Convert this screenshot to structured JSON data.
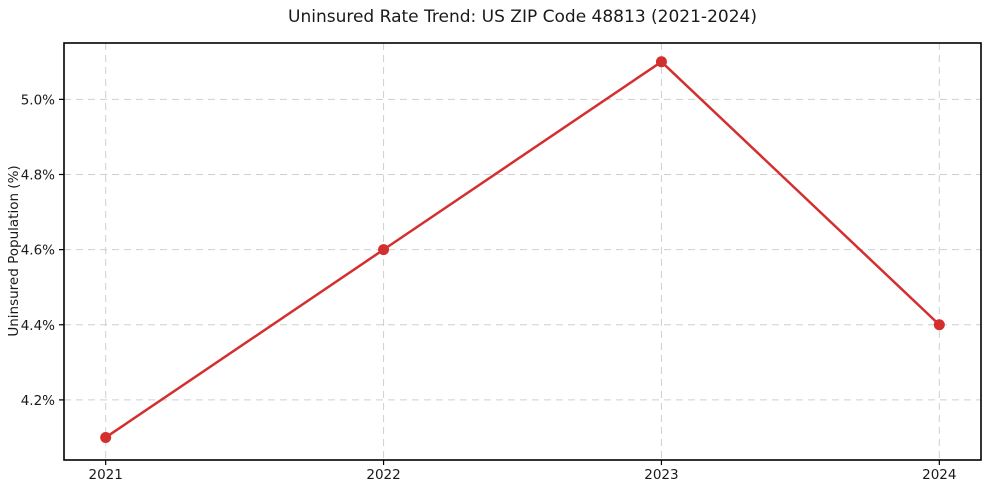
{
  "chart_data": {
    "type": "line",
    "title": "Uninsured Rate Trend: US ZIP Code 48813 (2021-2024)",
    "xlabel": "",
    "ylabel": "Uninsured Population (%)",
    "x": [
      2021,
      2022,
      2023,
      2024
    ],
    "series": [
      {
        "name": "Uninsured Rate",
        "values": [
          4.1,
          4.6,
          5.1,
          4.4
        ]
      }
    ],
    "xticks": [
      2021,
      2022,
      2023,
      2024
    ],
    "xtick_labels": [
      "2021",
      "2022",
      "2023",
      "2024"
    ],
    "yticks": [
      4.2,
      4.4,
      4.6,
      4.8,
      5.0
    ],
    "ytick_labels": [
      "4.2%",
      "4.4%",
      "4.6%",
      "4.8%",
      "5.0%"
    ],
    "xlim": [
      2020.85,
      2024.15
    ],
    "ylim": [
      4.04,
      5.15
    ],
    "grid": true,
    "grid_style": "dashed",
    "legend": "none",
    "colors": {
      "line": "#d32f2f",
      "marker": "#d32f2f",
      "grid": "#cfcfcf",
      "spine": "#000000",
      "text": "#1a1a1a",
      "background": "#ffffff"
    }
  }
}
